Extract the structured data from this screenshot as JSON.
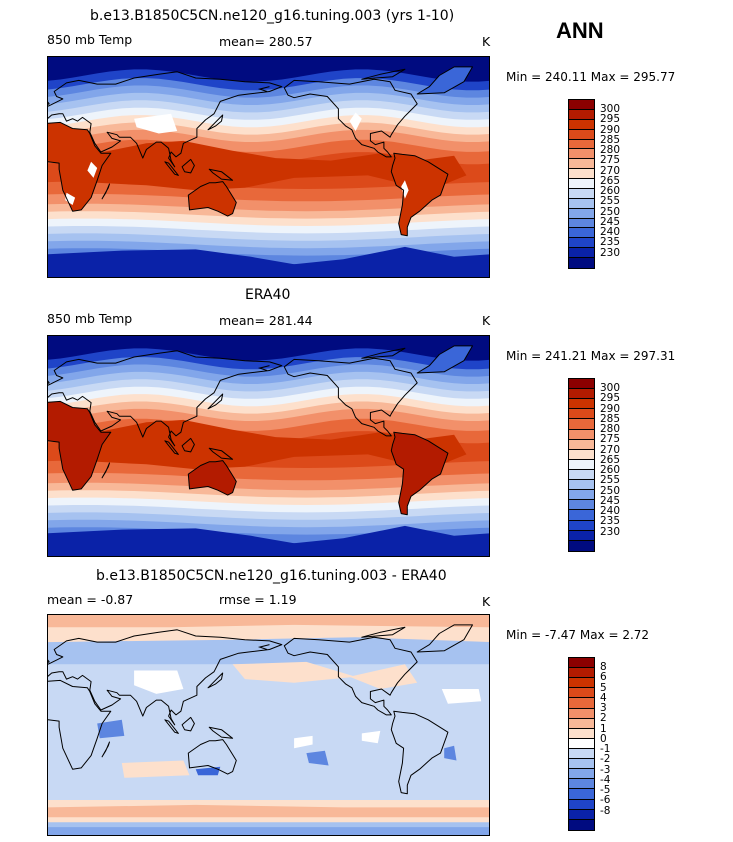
{
  "season": "ANN",
  "palettes": {
    "temp": [
      "#8b0000",
      "#b31b00",
      "#cc3300",
      "#dc4a1a",
      "#e8683a",
      "#f2906a",
      "#f8b898",
      "#fde0cc",
      "#eef4fb",
      "#c8d9f4",
      "#a6c2f0",
      "#82a6ea",
      "#5d86e0",
      "#3a66d8",
      "#1f44c8",
      "#0a22a8",
      "#000b80"
    ],
    "diff": [
      "#8b0000",
      "#b31b00",
      "#cc3300",
      "#dc4a1a",
      "#e8683a",
      "#f2906a",
      "#f8b898",
      "#fde0cc",
      "#ffffff",
      "#c8d9f4",
      "#a6c2f0",
      "#82a6ea",
      "#5d86e0",
      "#3a66d8",
      "#1f44c8",
      "#0a22a8",
      "#000b80"
    ]
  },
  "chart_data": [
    {
      "type": "heatmap",
      "title": "b.e13.B1850C5CN.ne120_g16.tuning.003 (yrs 1-10)",
      "left_label": "850 mb Temp",
      "center_label": "mean= 280.57",
      "right_label": "K",
      "minmax": "Min = 240.11 Max = 295.77",
      "mean": 280.57,
      "min": 240.11,
      "max": 295.77,
      "contour_levels": [
        "300",
        "295",
        "290",
        "285",
        "280",
        "275",
        "270",
        "265",
        "260",
        "255",
        "250",
        "245",
        "240",
        "235",
        "230"
      ]
    },
    {
      "type": "heatmap",
      "title": "ERA40",
      "left_label": "850 mb Temp",
      "center_label": "mean= 281.44",
      "right_label": "K",
      "minmax": "Min = 241.21 Max = 297.31",
      "mean": 281.44,
      "min": 241.21,
      "max": 297.31,
      "contour_levels": [
        "300",
        "295",
        "290",
        "285",
        "280",
        "275",
        "270",
        "265",
        "260",
        "255",
        "250",
        "245",
        "240",
        "235",
        "230"
      ]
    },
    {
      "type": "heatmap",
      "title": "b.e13.B1850C5CN.ne120_g16.tuning.003 - ERA40",
      "left_label": "mean =   -0.87",
      "center_label": "rmse =    1.19",
      "right_label": "K",
      "minmax": "Min =  -7.47 Max =   2.72",
      "mean": -0.87,
      "rmse": 1.19,
      "min": -7.47,
      "max": 2.72,
      "contour_levels": [
        "8",
        "6",
        "5",
        "4",
        "3",
        "2",
        "1",
        "0",
        "-1",
        "-2",
        "-3",
        "-4",
        "-5",
        "-6",
        "-8"
      ]
    }
  ]
}
